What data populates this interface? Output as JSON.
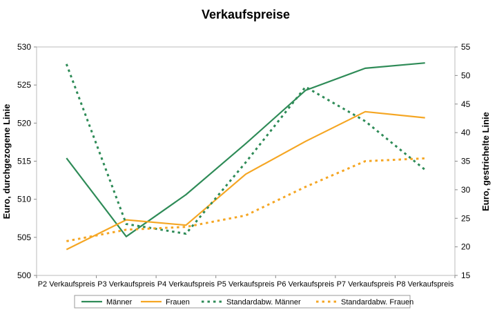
{
  "chart_data": {
    "type": "line",
    "title": "Verkaufspreise",
    "ylabel": "Euro, durchgezogene Linie",
    "y2label": "Euro, gestrichelte Linie",
    "categories": [
      "P2 Verkaufspreis",
      "P3 Verkaufspreis",
      "P4 Verkaufspreis",
      "P5 Verkaufspreis",
      "P6 Verkaufspreis",
      "P7 Verkaufspreis",
      "P8 Verkaufspreis"
    ],
    "ylim": [
      500,
      530
    ],
    "yticks": [
      "500",
      "505",
      "510",
      "515",
      "520",
      "525",
      "530"
    ],
    "y2lim": [
      15,
      55
    ],
    "y2ticks": [
      "15",
      "20",
      "25",
      "30",
      "35",
      "40",
      "45",
      "50",
      "55"
    ],
    "grid": false,
    "legend_position": "bottom",
    "series": [
      {
        "name": "Männer",
        "axis": "left",
        "style": "solid",
        "color": "#2e8b57",
        "values": [
          515.4,
          505.1,
          510.6,
          517.3,
          524.3,
          527.2,
          527.9
        ]
      },
      {
        "name": "Frauen",
        "axis": "left",
        "style": "solid",
        "color": "#f5a623",
        "values": [
          503.4,
          507.3,
          506.6,
          513.3,
          517.6,
          521.5,
          520.7
        ]
      },
      {
        "name": "Standardabw. Männer",
        "axis": "right",
        "style": "dashed",
        "color": "#2e8b57",
        "values": [
          52.0,
          24.0,
          22.3,
          34.8,
          48.0,
          42.0,
          33.5
        ]
      },
      {
        "name": "Standardabw. Frauen",
        "axis": "right",
        "style": "dashed",
        "color": "#f5a623",
        "values": [
          21.0,
          23.0,
          23.5,
          25.5,
          30.5,
          35.0,
          35.5
        ]
      }
    ]
  }
}
